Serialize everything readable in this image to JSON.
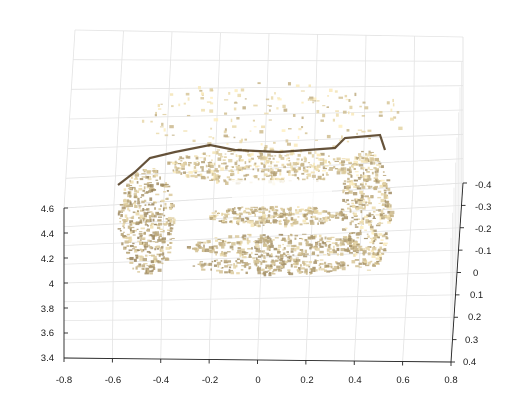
{
  "chart_data": {
    "type": "scatter",
    "projection": "3d",
    "title": "",
    "xlabel": "",
    "ylabel": "",
    "zlabel": "",
    "grid": true,
    "xlim": [
      -0.8,
      0.8
    ],
    "ylim": [
      -0.4,
      0.4
    ],
    "zlim": [
      3.4,
      4.6
    ],
    "x_ticks": [
      "-0.8",
      "-0.6",
      "-0.4",
      "-0.2",
      "0",
      "0.2",
      "0.4",
      "0.6",
      "0.8"
    ],
    "y_ticks": [
      "-0.4",
      "-0.3",
      "-0.2",
      "-0.1",
      "0",
      "0.1",
      "0.2",
      "0.3",
      "0.4"
    ],
    "z_ticks": [
      "3.4",
      "3.6",
      "3.8",
      "4",
      "4.2",
      "4.4",
      "4.6"
    ],
    "point_color_range": [
      "#5c4420",
      "#fff0c0"
    ],
    "description_hidden": false
  },
  "colors": {
    "grid": "#e3e3e3",
    "axis": "#222222",
    "background": "#ffffff"
  }
}
